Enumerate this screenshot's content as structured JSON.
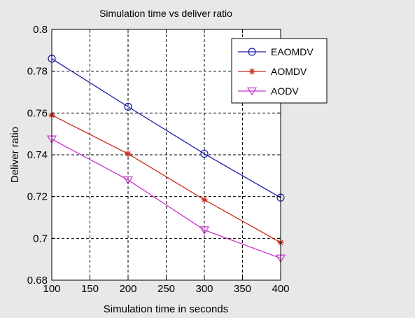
{
  "chart_data": {
    "type": "line",
    "title": "Simulation time vs deliver ratio",
    "xlabel": "Simulation time in seconds",
    "ylabel": "Deliver ratio",
    "x": [
      100,
      200,
      300,
      400
    ],
    "xlim": [
      100,
      400
    ],
    "ylim": [
      0.68,
      0.8
    ],
    "xticks": [
      100,
      150,
      200,
      250,
      300,
      350,
      400
    ],
    "yticks": [
      0.68,
      0.7,
      0.72,
      0.74,
      0.76,
      0.78,
      0.8
    ],
    "xtick_labels": [
      "100",
      "150",
      "200",
      "250",
      "300",
      "350",
      "400"
    ],
    "ytick_labels": [
      "0.68",
      "0.7",
      "0.72",
      "0.74",
      "0.76",
      "0.78",
      "0.8"
    ],
    "grid": true,
    "legend_position": "top-right",
    "series": [
      {
        "name": "EAOMDV",
        "values": [
          0.786,
          0.763,
          0.7405,
          0.7195
        ],
        "color": "#1a1aa8",
        "marker": "circle"
      },
      {
        "name": "AOMDV",
        "values": [
          0.759,
          0.7405,
          0.7185,
          0.698
        ],
        "color": "#cc2a1a",
        "marker": "star"
      },
      {
        "name": "AODV",
        "values": [
          0.7475,
          0.728,
          0.704,
          0.6905
        ],
        "color": "#cc33cc",
        "marker": "triangle-down"
      }
    ]
  }
}
